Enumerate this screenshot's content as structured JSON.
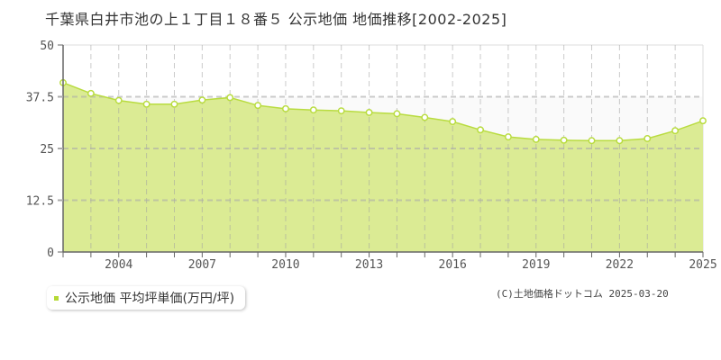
{
  "header": {
    "title": "千葉県白井市池の上１丁目１８番５ 公示地価 地価推移[2002-2025]"
  },
  "legend": {
    "label": "公示地価 平均坪単価(万円/坪)",
    "color": "#b5d935"
  },
  "footer": {
    "copyright": "(C)土地価格ドットコム 2025-03-20"
  },
  "colors": {
    "fill": "#dbeb94",
    "line": "#b9dc40",
    "point_fill": "#ffffff",
    "grid": "#cccccc",
    "axis": "#666666",
    "upper_band": "#fafafa"
  },
  "chart_data": {
    "type": "area",
    "title": "千葉県白井市池の上１丁目１８番５ 公示地価 地価推移[2002-2025]",
    "xlabel": "",
    "ylabel": "",
    "ylim": [
      0,
      50
    ],
    "xlim": [
      2002,
      2025
    ],
    "y_ticks": [
      "0",
      "12.5",
      "25",
      "37.5",
      "50"
    ],
    "x_ticks": [
      "2004",
      "2007",
      "2010",
      "2013",
      "2016",
      "2019",
      "2022",
      "2025"
    ],
    "grid": true,
    "legend_position": "bottom-left",
    "x": [
      2002,
      2003,
      2004,
      2005,
      2006,
      2007,
      2008,
      2009,
      2010,
      2011,
      2012,
      2013,
      2014,
      2015,
      2016,
      2017,
      2018,
      2019,
      2020,
      2021,
      2022,
      2023,
      2024,
      2025
    ],
    "series": [
      {
        "name": "公示地価 平均坪単価(万円/坪)",
        "values": [
          40.9,
          38.3,
          36.6,
          35.7,
          35.7,
          36.7,
          37.3,
          35.4,
          34.6,
          34.3,
          34.1,
          33.7,
          33.4,
          32.5,
          31.5,
          29.5,
          27.8,
          27.2,
          27.0,
          26.9,
          26.9,
          27.4,
          29.3,
          31.7
        ]
      }
    ]
  }
}
